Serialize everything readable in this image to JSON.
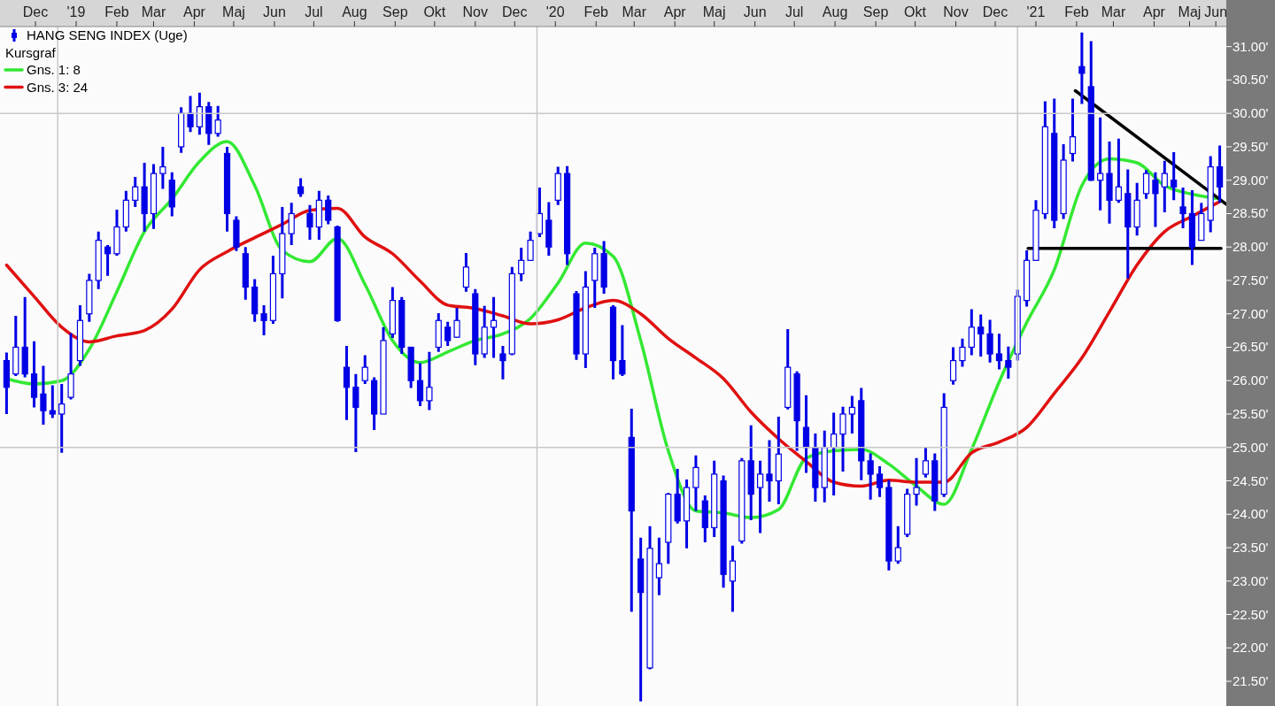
{
  "chart_data": {
    "type": "candlestick",
    "legend": "top left",
    "annotations": [
      "Kursgraf"
    ],
    "xlim": [
      "2018-11-18",
      "2021-06-09"
    ],
    "xticks": [
      {
        "value": "2018-12-15",
        "label": "Dec"
      },
      {
        "value": "2019-01-15",
        "label": "'19"
      },
      {
        "value": "2019-02-15",
        "label": "Feb"
      },
      {
        "value": "2019-03-15",
        "label": "Mar"
      },
      {
        "value": "2019-04-15",
        "label": "Apr"
      },
      {
        "value": "2019-05-15",
        "label": "Maj"
      },
      {
        "value": "2019-06-15",
        "label": "Jun"
      },
      {
        "value": "2019-07-15",
        "label": "Jul"
      },
      {
        "value": "2019-08-15",
        "label": "Aug"
      },
      {
        "value": "2019-09-15",
        "label": "Sep"
      },
      {
        "value": "2019-10-15",
        "label": "Okt"
      },
      {
        "value": "2019-11-15",
        "label": "Nov"
      },
      {
        "value": "2019-12-15",
        "label": "Dec"
      },
      {
        "value": "2020-01-15",
        "label": "'20"
      },
      {
        "value": "2020-02-15",
        "label": "Feb"
      },
      {
        "value": "2020-03-15",
        "label": "Mar"
      },
      {
        "value": "2020-04-15",
        "label": "Apr"
      },
      {
        "value": "2020-05-15",
        "label": "Maj"
      },
      {
        "value": "2020-06-15",
        "label": "Jun"
      },
      {
        "value": "2020-07-15",
        "label": "Jul"
      },
      {
        "value": "2020-08-15",
        "label": "Aug"
      },
      {
        "value": "2020-09-15",
        "label": "Sep"
      },
      {
        "value": "2020-10-15",
        "label": "Okt"
      },
      {
        "value": "2020-11-15",
        "label": "Nov"
      },
      {
        "value": "2020-12-15",
        "label": "Dec"
      },
      {
        "value": "2021-01-15",
        "label": "'21"
      },
      {
        "value": "2021-02-15",
        "label": "Feb"
      },
      {
        "value": "2021-03-15",
        "label": "Mar"
      },
      {
        "value": "2021-04-15",
        "label": "Apr"
      },
      {
        "value": "2021-05-12",
        "label": "Maj"
      },
      {
        "value": "2021-06-01",
        "label": "Jun"
      }
    ],
    "ylim": [
      21.13,
      31.3
    ],
    "yticks": [
      {
        "value": 21.5,
        "label": "21.50'"
      },
      {
        "value": 22,
        "label": "22.00'"
      },
      {
        "value": 22.5,
        "label": "22.50'"
      },
      {
        "value": 23,
        "label": "23.00'"
      },
      {
        "value": 23.5,
        "label": "23.50'"
      },
      {
        "value": 24,
        "label": "24.00'"
      },
      {
        "value": 24.5,
        "label": "24.50'"
      },
      {
        "value": 25,
        "label": "25.00'"
      },
      {
        "value": 25.5,
        "label": "25.50'"
      },
      {
        "value": 26,
        "label": "26.00'"
      },
      {
        "value": 26.5,
        "label": "26.50'"
      },
      {
        "value": 27,
        "label": "27.00'"
      },
      {
        "value": 27.5,
        "label": "27.50'"
      },
      {
        "value": 28,
        "label": "28.00'"
      },
      {
        "value": 28.5,
        "label": "28.50'"
      },
      {
        "value": 29,
        "label": "29.00'"
      },
      {
        "value": 29.5,
        "label": "29.50'"
      },
      {
        "value": 30,
        "label": "30.00'"
      },
      {
        "value": 30.5,
        "label": "30.50'"
      },
      {
        "value": 31,
        "label": "31.00'"
      }
    ],
    "ref_lines": [
      {
        "axis": "y",
        "value": 25,
        "color": "#c8c8c8"
      },
      {
        "axis": "y",
        "value": 30,
        "color": "#c8c8c8"
      },
      {
        "axis": "x",
        "value": "2019-01-01",
        "color": "#c8c8c8"
      },
      {
        "axis": "x",
        "value": "2020-01-01",
        "color": "#c8c8c8"
      },
      {
        "axis": "x",
        "value": "2021-01-01",
        "color": "#c8c8c8"
      }
    ],
    "x": [
      "2018-11-23",
      "2018-11-30",
      "2018-12-07",
      "2018-12-14",
      "2018-12-21",
      "2018-12-28",
      "2019-01-04",
      "2019-01-11",
      "2019-01-18",
      "2019-01-25",
      "2019-02-01",
      "2019-02-08",
      "2019-02-15",
      "2019-02-22",
      "2019-03-01",
      "2019-03-08",
      "2019-03-15",
      "2019-03-22",
      "2019-03-29",
      "2019-04-05",
      "2019-04-12",
      "2019-04-19",
      "2019-04-26",
      "2019-05-03",
      "2019-05-10",
      "2019-05-17",
      "2019-05-24",
      "2019-05-31",
      "2019-06-07",
      "2019-06-14",
      "2019-06-21",
      "2019-06-28",
      "2019-07-05",
      "2019-07-12",
      "2019-07-19",
      "2019-07-26",
      "2019-08-02",
      "2019-08-09",
      "2019-08-16",
      "2019-08-23",
      "2019-08-30",
      "2019-09-06",
      "2019-09-13",
      "2019-09-20",
      "2019-09-27",
      "2019-10-04",
      "2019-10-11",
      "2019-10-18",
      "2019-10-25",
      "2019-11-01",
      "2019-11-08",
      "2019-11-15",
      "2019-11-22",
      "2019-11-29",
      "2019-12-06",
      "2019-12-13",
      "2019-12-20",
      "2019-12-27",
      "2020-01-03",
      "2020-01-10",
      "2020-01-17",
      "2020-01-24",
      "2020-01-31",
      "2020-02-07",
      "2020-02-14",
      "2020-02-21",
      "2020-02-28",
      "2020-03-06",
      "2020-03-13",
      "2020-03-20",
      "2020-03-27",
      "2020-04-03",
      "2020-04-10",
      "2020-04-17",
      "2020-04-24",
      "2020-05-01",
      "2020-05-08",
      "2020-05-15",
      "2020-05-22",
      "2020-05-29",
      "2020-06-05",
      "2020-06-12",
      "2020-06-19",
      "2020-06-26",
      "2020-07-03",
      "2020-07-10",
      "2020-07-17",
      "2020-07-24",
      "2020-07-31",
      "2020-08-07",
      "2020-08-14",
      "2020-08-21",
      "2020-08-28",
      "2020-09-04",
      "2020-09-11",
      "2020-09-18",
      "2020-09-25",
      "2020-10-02",
      "2020-10-09",
      "2020-10-16",
      "2020-10-23",
      "2020-10-30",
      "2020-11-06",
      "2020-11-13",
      "2020-11-20",
      "2020-11-27",
      "2020-12-04",
      "2020-12-11",
      "2020-12-18",
      "2020-12-25",
      "2021-01-01",
      "2021-01-08",
      "2021-01-15",
      "2021-01-22",
      "2021-01-29",
      "2021-02-05",
      "2021-02-12",
      "2021-02-19",
      "2021-02-26",
      "2021-03-05",
      "2021-03-12",
      "2021-03-19",
      "2021-03-26",
      "2021-04-02",
      "2021-04-09",
      "2021-04-16",
      "2021-04-23",
      "2021-04-30",
      "2021-05-07",
      "2021-05-14",
      "2021-05-21",
      "2021-05-28",
      "2021-06-04"
    ],
    "series": [
      {
        "type": "line",
        "name": "Gns. 1: 8",
        "color": "#33e833",
        "x": [
          "2018-11-23",
          "2018-12-14",
          "2019-01-04",
          "2019-01-25",
          "2019-02-15",
          "2019-03-08",
          "2019-03-29",
          "2019-04-19",
          "2019-05-10",
          "2019-05-31",
          "2019-06-21",
          "2019-07-12",
          "2019-08-02",
          "2019-08-23",
          "2019-09-13",
          "2019-10-04",
          "2019-10-25",
          "2019-11-15",
          "2019-12-06",
          "2019-12-27",
          "2020-01-17",
          "2020-02-07",
          "2020-02-28",
          "2020-03-20",
          "2020-04-10",
          "2020-05-01",
          "2020-05-22",
          "2020-06-12",
          "2020-07-03",
          "2020-07-24",
          "2020-08-14",
          "2020-09-04",
          "2020-09-25",
          "2020-10-16",
          "2020-11-06",
          "2020-11-27",
          "2020-12-18",
          "2021-01-08",
          "2021-01-29",
          "2021-02-19",
          "2021-03-12",
          "2021-04-02",
          "2021-04-23",
          "2021-05-14",
          "2021-06-04"
        ],
        "values": [
          26.03,
          25.95,
          26.0,
          26.47,
          27.33,
          28.23,
          28.72,
          29.28,
          29.58,
          28.92,
          27.95,
          27.78,
          28.13,
          27.44,
          26.6,
          26.27,
          26.43,
          26.6,
          26.7,
          26.93,
          27.46,
          28.06,
          27.86,
          26.6,
          24.95,
          24.05,
          24.02,
          23.95,
          24.07,
          24.84,
          24.95,
          24.97,
          24.75,
          24.42,
          24.15,
          24.97,
          25.98,
          26.87,
          27.66,
          28.92,
          29.32,
          29.26,
          28.92,
          28.79,
          28.72
        ]
      },
      {
        "type": "line",
        "name": "Gns. 3: 24",
        "color": "#e01010",
        "x": [
          "2018-11-23",
          "2018-12-14",
          "2019-01-04",
          "2019-01-25",
          "2019-02-15",
          "2019-03-08",
          "2019-03-29",
          "2019-04-19",
          "2019-05-10",
          "2019-05-31",
          "2019-06-21",
          "2019-07-12",
          "2019-08-02",
          "2019-08-23",
          "2019-09-13",
          "2019-10-04",
          "2019-10-25",
          "2019-11-15",
          "2019-12-06",
          "2019-12-27",
          "2020-01-17",
          "2020-02-07",
          "2020-02-28",
          "2020-03-20",
          "2020-04-10",
          "2020-05-01",
          "2020-05-22",
          "2020-06-12",
          "2020-07-03",
          "2020-07-24",
          "2020-08-14",
          "2020-09-04",
          "2020-09-25",
          "2020-10-16",
          "2020-11-06",
          "2020-11-27",
          "2020-12-18",
          "2021-01-08",
          "2021-01-29",
          "2021-02-19",
          "2021-03-12",
          "2021-04-02",
          "2021-04-23",
          "2021-05-14",
          "2021-06-04"
        ],
        "values": [
          27.73,
          27.26,
          26.8,
          26.58,
          26.67,
          26.75,
          27.07,
          27.66,
          27.93,
          28.14,
          28.34,
          28.55,
          28.58,
          28.15,
          27.9,
          27.49,
          27.13,
          27.08,
          26.97,
          26.85,
          26.91,
          27.09,
          27.2,
          27.0,
          26.63,
          26.34,
          26.03,
          25.53,
          25.13,
          24.79,
          24.48,
          24.42,
          24.51,
          24.48,
          24.48,
          24.92,
          25.08,
          25.3,
          25.81,
          26.34,
          27.03,
          27.73,
          28.23,
          28.46,
          28.68
        ]
      },
      {
        "type": "line",
        "color": "#000000",
        "x": [
          "2021-02-14",
          "2021-06-09"
        ],
        "values": [
          30.34,
          28.64
        ]
      },
      {
        "type": "line",
        "color": "#000000",
        "x": [
          "2021-01-09",
          "2021-06-05"
        ],
        "values": [
          27.98,
          27.98
        ]
      },
      {
        "type": "candlestick",
        "name": "HANG SENG INDEX (Uge)",
        "color": "#0000e6",
        "ohlc": [
          [
            26.3,
            26.42,
            25.5,
            25.9
          ],
          [
            26.1,
            26.97,
            26.07,
            26.5
          ],
          [
            26.5,
            27.25,
            26.05,
            26.1
          ],
          [
            26.1,
            26.59,
            25.6,
            25.75
          ],
          [
            25.8,
            26.22,
            25.34,
            25.55
          ],
          [
            25.55,
            25.93,
            25.44,
            25.5
          ],
          [
            25.5,
            25.95,
            24.92,
            25.65
          ],
          [
            25.75,
            26.71,
            25.72,
            26.1
          ],
          [
            26.3,
            27.13,
            26.22,
            26.9
          ],
          [
            27.0,
            27.6,
            26.88,
            27.5
          ],
          [
            27.5,
            28.23,
            27.37,
            28.1
          ],
          [
            28.0,
            28.03,
            27.57,
            27.9
          ],
          [
            27.9,
            28.56,
            27.87,
            28.3
          ],
          [
            28.3,
            28.84,
            28.23,
            28.7
          ],
          [
            28.7,
            29.05,
            28.6,
            28.9
          ],
          [
            28.9,
            29.26,
            28.23,
            28.5
          ],
          [
            28.5,
            29.24,
            28.27,
            29.1
          ],
          [
            29.1,
            29.5,
            28.87,
            29.2
          ],
          [
            29.0,
            29.12,
            28.46,
            28.6
          ],
          [
            29.5,
            30.09,
            29.41,
            30.0
          ],
          [
            30.0,
            30.26,
            29.72,
            29.8
          ],
          [
            29.8,
            30.31,
            29.68,
            30.1
          ],
          [
            30.1,
            30.17,
            29.53,
            29.7
          ],
          [
            29.7,
            30.11,
            29.65,
            29.9
          ],
          [
            29.4,
            29.5,
            28.23,
            28.5
          ],
          [
            28.4,
            28.46,
            27.94,
            28.0
          ],
          [
            27.9,
            28.0,
            27.21,
            27.4
          ],
          [
            27.4,
            27.52,
            26.88,
            27.0
          ],
          [
            27.0,
            27.13,
            26.68,
            26.9
          ],
          [
            26.9,
            27.87,
            26.85,
            27.6
          ],
          [
            27.6,
            28.6,
            27.23,
            28.2
          ],
          [
            28.2,
            28.66,
            28.03,
            28.5
          ],
          [
            28.9,
            29.03,
            28.75,
            28.8
          ],
          [
            28.5,
            28.63,
            28.11,
            28.3
          ],
          [
            28.3,
            28.84,
            28.11,
            28.7
          ],
          [
            28.7,
            28.77,
            28.34,
            28.4
          ],
          [
            28.3,
            28.32,
            26.88,
            26.9
          ],
          [
            26.2,
            26.52,
            25.41,
            25.9
          ],
          [
            25.9,
            26.1,
            24.93,
            25.6
          ],
          [
            26.0,
            26.38,
            25.95,
            26.2
          ],
          [
            26.0,
            26.05,
            25.26,
            25.5
          ],
          [
            25.5,
            26.8,
            25.5,
            26.6
          ],
          [
            26.7,
            27.4,
            26.64,
            27.2
          ],
          [
            27.2,
            27.25,
            26.4,
            26.5
          ],
          [
            26.5,
            26.5,
            25.89,
            26.0
          ],
          [
            26.0,
            26.26,
            25.62,
            25.7
          ],
          [
            25.7,
            26.43,
            25.56,
            25.9
          ],
          [
            26.5,
            27.01,
            26.43,
            26.9
          ],
          [
            26.8,
            26.88,
            26.52,
            26.6
          ],
          [
            26.65,
            27.09,
            26.64,
            26.9
          ],
          [
            27.4,
            27.91,
            27.33,
            27.7
          ],
          [
            27.3,
            27.37,
            26.23,
            26.4
          ],
          [
            26.4,
            27.12,
            26.34,
            26.8
          ],
          [
            26.8,
            27.25,
            26.34,
            26.9
          ],
          [
            26.4,
            26.52,
            26.02,
            26.3
          ],
          [
            26.4,
            27.7,
            26.38,
            27.6
          ],
          [
            27.6,
            27.99,
            27.49,
            27.8
          ],
          [
            27.8,
            28.23,
            27.79,
            28.1
          ],
          [
            28.2,
            28.89,
            28.15,
            28.5
          ],
          [
            28.4,
            28.67,
            27.87,
            28.0
          ],
          [
            28.7,
            29.2,
            28.63,
            29.1
          ],
          [
            29.1,
            29.21,
            27.73,
            27.9
          ],
          [
            27.3,
            27.34,
            26.31,
            26.4
          ],
          [
            26.4,
            27.64,
            26.19,
            27.4
          ],
          [
            27.5,
            27.99,
            27.09,
            27.9
          ],
          [
            27.9,
            28.09,
            27.3,
            27.4
          ],
          [
            27.1,
            27.13,
            26.02,
            26.3
          ],
          [
            26.3,
            26.83,
            26.07,
            26.1
          ],
          [
            25.15,
            25.58,
            22.54,
            24.05
          ],
          [
            23.33,
            23.65,
            21.2,
            22.83
          ],
          [
            21.7,
            23.82,
            21.68,
            23.49
          ],
          [
            23.05,
            23.65,
            22.79,
            23.26
          ],
          [
            23.58,
            24.32,
            23.26,
            24.3
          ],
          [
            24.3,
            24.68,
            23.86,
            23.9
          ],
          [
            23.9,
            24.52,
            23.49,
            24.4
          ],
          [
            24.4,
            24.88,
            24.05,
            24.7
          ],
          [
            24.2,
            24.28,
            23.58,
            23.8
          ],
          [
            23.8,
            24.8,
            23.66,
            24.6
          ],
          [
            24.5,
            24.58,
            22.9,
            23.1
          ],
          [
            23.0,
            23.53,
            22.54,
            23.3
          ],
          [
            23.6,
            24.84,
            23.56,
            24.8
          ],
          [
            24.8,
            25.33,
            23.91,
            24.3
          ],
          [
            24.4,
            24.8,
            23.72,
            24.6
          ],
          [
            24.6,
            25.11,
            24.19,
            24.5
          ],
          [
            24.5,
            25.46,
            24.15,
            24.9
          ],
          [
            25.6,
            26.77,
            25.57,
            26.2
          ],
          [
            26.1,
            26.14,
            24.95,
            25.4
          ],
          [
            25.3,
            25.78,
            24.62,
            25.0
          ],
          [
            25.0,
            25.21,
            24.19,
            24.4
          ],
          [
            24.4,
            25.25,
            24.18,
            25.0
          ],
          [
            25.0,
            25.52,
            24.28,
            25.2
          ],
          [
            25.2,
            25.61,
            24.64,
            25.5
          ],
          [
            25.5,
            25.77,
            25.21,
            25.6
          ],
          [
            25.7,
            25.89,
            24.51,
            24.8
          ],
          [
            24.8,
            24.91,
            24.22,
            24.6
          ],
          [
            24.6,
            24.72,
            24.26,
            24.4
          ],
          [
            24.4,
            24.51,
            23.16,
            23.3
          ],
          [
            23.3,
            23.82,
            23.26,
            23.5
          ],
          [
            23.7,
            24.38,
            23.66,
            24.3
          ],
          [
            24.3,
            24.84,
            24.13,
            24.4
          ],
          [
            24.6,
            25.0,
            24.55,
            24.8
          ],
          [
            24.8,
            24.91,
            24.05,
            24.2
          ],
          [
            24.3,
            25.81,
            24.26,
            25.6
          ],
          [
            26.0,
            26.5,
            25.94,
            26.3
          ],
          [
            26.3,
            26.63,
            26.21,
            26.5
          ],
          [
            26.5,
            27.07,
            26.38,
            26.8
          ],
          [
            26.8,
            26.99,
            26.36,
            26.7
          ],
          [
            26.7,
            26.91,
            26.27,
            26.4
          ],
          [
            26.4,
            26.7,
            26.17,
            26.3
          ],
          [
            26.3,
            26.51,
            26.03,
            26.2
          ],
          [
            26.4,
            27.36,
            26.3,
            27.26
          ],
          [
            27.2,
            27.95,
            27.11,
            27.8
          ],
          [
            27.8,
            28.7,
            27.79,
            28.55
          ],
          [
            28.5,
            30.18,
            28.42,
            29.8
          ],
          [
            29.7,
            30.22,
            28.28,
            28.4
          ],
          [
            28.5,
            29.54,
            28.42,
            29.3
          ],
          [
            29.4,
            30.22,
            29.28,
            29.65
          ],
          [
            30.7,
            31.21,
            30.14,
            30.6
          ],
          [
            30.4,
            31.08,
            28.99,
            29.0
          ],
          [
            29.0,
            29.94,
            28.55,
            29.1
          ],
          [
            29.1,
            29.58,
            28.35,
            28.7
          ],
          [
            28.7,
            29.62,
            28.66,
            28.9
          ],
          [
            28.8,
            29.16,
            27.53,
            28.3
          ],
          [
            28.3,
            28.96,
            28.17,
            28.7
          ],
          [
            28.8,
            29.15,
            28.72,
            29.1
          ],
          [
            29.0,
            29.12,
            28.3,
            28.8
          ],
          [
            28.9,
            29.29,
            28.52,
            29.1
          ],
          [
            29.0,
            29.42,
            28.7,
            28.9
          ],
          [
            28.6,
            28.89,
            28.28,
            28.5
          ],
          [
            28.5,
            28.85,
            27.73,
            28.0
          ],
          [
            28.1,
            28.66,
            28.1,
            28.5
          ],
          [
            28.4,
            29.36,
            28.22,
            29.2
          ],
          [
            29.2,
            29.52,
            28.66,
            28.9
          ]
        ]
      }
    ]
  }
}
